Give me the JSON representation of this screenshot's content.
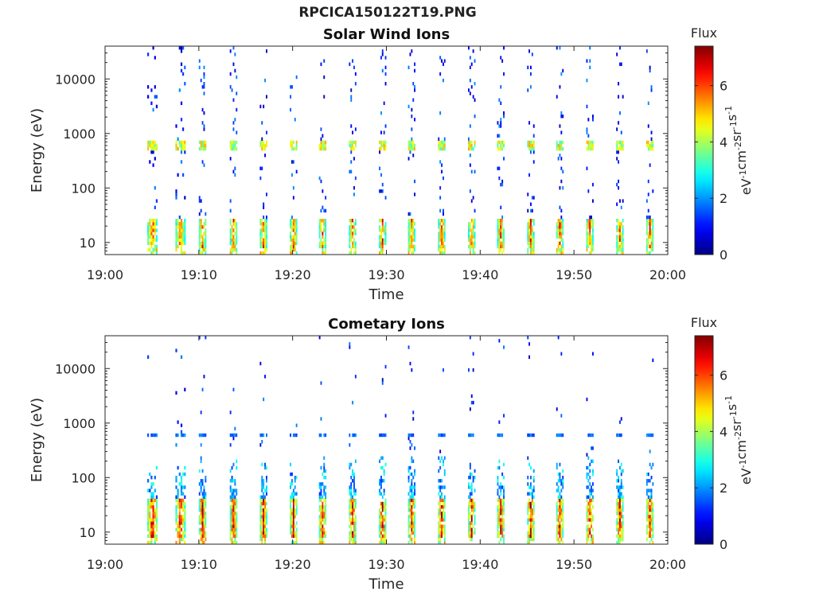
{
  "figure_title": "RPCICA150122T19.PNG",
  "chart_data": [
    {
      "type": "heatmap",
      "title": "Solar Wind Ions",
      "xlabel": "Time",
      "ylabel": "Energy (eV)",
      "x_ticks": [
        "19:00",
        "19:10",
        "19:20",
        "19:30",
        "19:40",
        "19:50",
        "20:00"
      ],
      "xlim": [
        "19:00",
        "20:00"
      ],
      "y_scale": "log",
      "y_ticks": [
        10,
        100,
        1000,
        10000
      ],
      "y_tick_labels": [
        "10",
        "100",
        "1000",
        "10000"
      ],
      "ylim": [
        6,
        40000
      ],
      "colorbar": {
        "title": "Flux",
        "label_parts": [
          "eV",
          "-1",
          "cm",
          "-2",
          "sr",
          "-1",
          "s",
          "-1"
        ],
        "range": [
          0,
          7.4
        ],
        "ticks": [
          "0",
          "2",
          "4",
          "6"
        ],
        "colormap": "jet"
      },
      "grid": false,
      "scan_start_times_min": [
        4.5,
        7.5,
        10.0,
        13.3,
        16.5,
        19.7,
        22.8,
        26.0,
        29.2,
        32.3,
        35.5,
        38.7,
        41.8,
        45.0,
        48.1,
        51.3,
        54.5,
        57.7
      ],
      "peaks": {
        "low_energy_band_eV": [
          8,
          28
        ],
        "low_energy_band_flux": 6.4,
        "main_band_eV": [
          480,
          700
        ],
        "main_band_flux": 4.6,
        "sparse_counts_flux": 1.2
      }
    },
    {
      "type": "heatmap",
      "title": "Cometary Ions",
      "xlabel": "Time",
      "ylabel": "Energy (eV)",
      "x_ticks": [
        "19:00",
        "19:10",
        "19:20",
        "19:30",
        "19:40",
        "19:50",
        "20:00"
      ],
      "xlim": [
        "19:00",
        "20:00"
      ],
      "y_scale": "log",
      "y_ticks": [
        10,
        100,
        1000,
        10000
      ],
      "y_tick_labels": [
        "10",
        "100",
        "1000",
        "10000"
      ],
      "ylim": [
        6,
        40000
      ],
      "colorbar": {
        "title": "Flux",
        "label_parts": [
          "eV",
          "-1",
          "cm",
          "-2",
          "sr",
          "-1",
          "s",
          "-1"
        ],
        "range": [
          0,
          7.4
        ],
        "ticks": [
          "0",
          "2",
          "4",
          "6"
        ],
        "colormap": "jet"
      },
      "grid": false,
      "scan_start_times_min": [
        4.5,
        7.5,
        10.0,
        13.3,
        16.5,
        19.7,
        22.8,
        26.0,
        29.2,
        32.3,
        35.5,
        38.7,
        41.8,
        45.0,
        48.1,
        51.3,
        54.5,
        57.7
      ],
      "peaks": {
        "low_energy_band_eV": [
          8,
          40
        ],
        "low_energy_band_flux": 7.0,
        "scatter_band_eV": [
          40,
          250
        ],
        "scatter_band_flux": 2.4,
        "main_band_eV": [
          540,
          650
        ],
        "main_band_flux": 1.8
      }
    }
  ]
}
